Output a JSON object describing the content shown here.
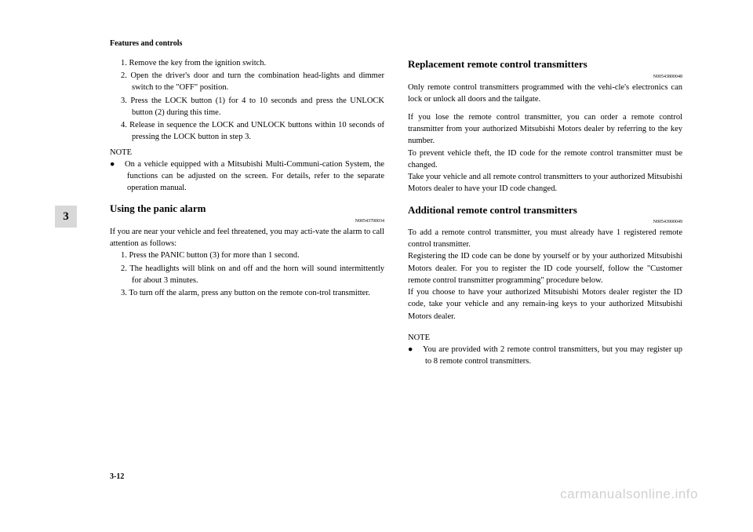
{
  "header": "Features and controls",
  "section_number": "3",
  "page_number": "3-12",
  "watermark": "carmanualsonline.info",
  "left": {
    "steps_a": [
      "1. Remove the key from the ignition switch.",
      "2. Open the driver's door and turn the combination head-lights and dimmer switch to the \"OFF\" position.",
      "3. Press the LOCK button (1) for 4 to 10 seconds and press the UNLOCK button (2) during this time.",
      "4. Release in sequence the LOCK and UNLOCK buttons within 10 seconds of pressing the LOCK button in step 3."
    ],
    "note_label": "NOTE",
    "note_a": "On a vehicle equipped with a Mitsubishi Multi-Communi-cation System, the functions can be adjusted on the screen. For details, refer to the separate operation manual.",
    "panic": {
      "title": "Using the panic alarm",
      "code": "N00543700034",
      "intro": "If you are near your vehicle and feel threatened, you may acti-vate the alarm to call attention as follows:",
      "steps": [
        "1. Press the PANIC button (3) for more than 1 second.",
        "2. The headlights will blink on and off and the horn will sound intermittently for about 3 minutes.",
        "3. To turn off the alarm, press any button on the remote con-trol transmitter."
      ]
    }
  },
  "right": {
    "replacement": {
      "title": "Replacement remote control transmitters",
      "code": "N00543800048",
      "p1": "Only remote control transmitters programmed with the vehi-cle's electronics can lock or unlock all doors and the tailgate.",
      "p2": "If you lose the remote control transmitter, you can order a remote control transmitter from your authorized Mitsubishi Motors dealer by referring to the key number.",
      "p3": "To prevent vehicle theft, the ID code for the remote control transmitter must be changed.",
      "p4": "Take your vehicle and all remote control transmitters to your authorized Mitsubishi Motors dealer to have your ID code changed."
    },
    "additional": {
      "title": "Additional remote control transmitters",
      "code": "N00543900049",
      "p1": "To add a remote control transmitter, you must already have 1 registered remote control transmitter.",
      "p2": "Registering the ID code can be done by yourself or by your authorized Mitsubishi Motors dealer. For you to register the ID code yourself, follow the \"Customer remote control transmitter programming\" procedure below.",
      "p3": "If you choose to have your authorized Mitsubishi Motors dealer register the ID code, take your vehicle and any remain-ing keys to your authorized Mitsubishi Motors dealer.",
      "note_label": "NOTE",
      "note": "You are provided with 2 remote control transmitters, but you may register up to 8 remote control transmitters."
    }
  }
}
